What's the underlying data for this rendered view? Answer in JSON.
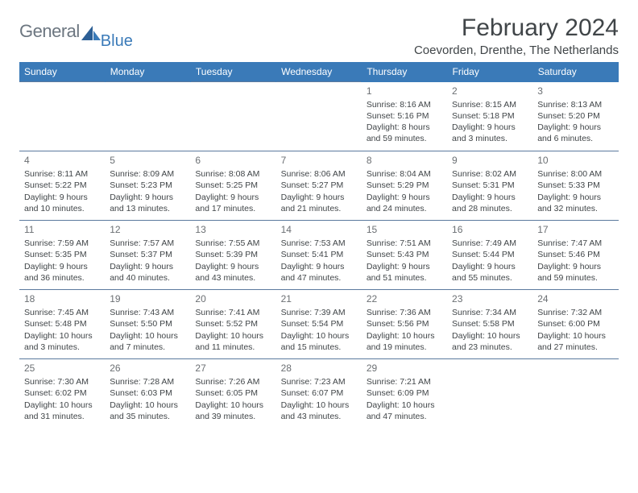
{
  "header": {
    "logo_general": "General",
    "logo_blue": "Blue",
    "logo_color_gray": "#6c7680",
    "logo_color_blue": "#3a7ab8",
    "month_title": "February 2024",
    "location": "Coevorden, Drenthe, The Netherlands"
  },
  "style": {
    "header_bg": "#3a7ab8",
    "header_fg": "#ffffff",
    "border_color": "#5b7a9e",
    "text_color": "#404548",
    "daynum_color": "#6b6f73",
    "background": "#ffffff",
    "body_fontsize": 10.5,
    "title_fontsize": 30,
    "location_fontsize": 15,
    "daynum_fontsize": 12,
    "header_fontsize": 12
  },
  "weekdays": [
    "Sunday",
    "Monday",
    "Tuesday",
    "Wednesday",
    "Thursday",
    "Friday",
    "Saturday"
  ],
  "grid": [
    [
      null,
      null,
      null,
      null,
      {
        "day": "1",
        "sunrise": "Sunrise: 8:16 AM",
        "sunset": "Sunset: 5:16 PM",
        "dl1": "Daylight: 8 hours",
        "dl2": "and 59 minutes."
      },
      {
        "day": "2",
        "sunrise": "Sunrise: 8:15 AM",
        "sunset": "Sunset: 5:18 PM",
        "dl1": "Daylight: 9 hours",
        "dl2": "and 3 minutes."
      },
      {
        "day": "3",
        "sunrise": "Sunrise: 8:13 AM",
        "sunset": "Sunset: 5:20 PM",
        "dl1": "Daylight: 9 hours",
        "dl2": "and 6 minutes."
      }
    ],
    [
      {
        "day": "4",
        "sunrise": "Sunrise: 8:11 AM",
        "sunset": "Sunset: 5:22 PM",
        "dl1": "Daylight: 9 hours",
        "dl2": "and 10 minutes."
      },
      {
        "day": "5",
        "sunrise": "Sunrise: 8:09 AM",
        "sunset": "Sunset: 5:23 PM",
        "dl1": "Daylight: 9 hours",
        "dl2": "and 13 minutes."
      },
      {
        "day": "6",
        "sunrise": "Sunrise: 8:08 AM",
        "sunset": "Sunset: 5:25 PM",
        "dl1": "Daylight: 9 hours",
        "dl2": "and 17 minutes."
      },
      {
        "day": "7",
        "sunrise": "Sunrise: 8:06 AM",
        "sunset": "Sunset: 5:27 PM",
        "dl1": "Daylight: 9 hours",
        "dl2": "and 21 minutes."
      },
      {
        "day": "8",
        "sunrise": "Sunrise: 8:04 AM",
        "sunset": "Sunset: 5:29 PM",
        "dl1": "Daylight: 9 hours",
        "dl2": "and 24 minutes."
      },
      {
        "day": "9",
        "sunrise": "Sunrise: 8:02 AM",
        "sunset": "Sunset: 5:31 PM",
        "dl1": "Daylight: 9 hours",
        "dl2": "and 28 minutes."
      },
      {
        "day": "10",
        "sunrise": "Sunrise: 8:00 AM",
        "sunset": "Sunset: 5:33 PM",
        "dl1": "Daylight: 9 hours",
        "dl2": "and 32 minutes."
      }
    ],
    [
      {
        "day": "11",
        "sunrise": "Sunrise: 7:59 AM",
        "sunset": "Sunset: 5:35 PM",
        "dl1": "Daylight: 9 hours",
        "dl2": "and 36 minutes."
      },
      {
        "day": "12",
        "sunrise": "Sunrise: 7:57 AM",
        "sunset": "Sunset: 5:37 PM",
        "dl1": "Daylight: 9 hours",
        "dl2": "and 40 minutes."
      },
      {
        "day": "13",
        "sunrise": "Sunrise: 7:55 AM",
        "sunset": "Sunset: 5:39 PM",
        "dl1": "Daylight: 9 hours",
        "dl2": "and 43 minutes."
      },
      {
        "day": "14",
        "sunrise": "Sunrise: 7:53 AM",
        "sunset": "Sunset: 5:41 PM",
        "dl1": "Daylight: 9 hours",
        "dl2": "and 47 minutes."
      },
      {
        "day": "15",
        "sunrise": "Sunrise: 7:51 AM",
        "sunset": "Sunset: 5:43 PM",
        "dl1": "Daylight: 9 hours",
        "dl2": "and 51 minutes."
      },
      {
        "day": "16",
        "sunrise": "Sunrise: 7:49 AM",
        "sunset": "Sunset: 5:44 PM",
        "dl1": "Daylight: 9 hours",
        "dl2": "and 55 minutes."
      },
      {
        "day": "17",
        "sunrise": "Sunrise: 7:47 AM",
        "sunset": "Sunset: 5:46 PM",
        "dl1": "Daylight: 9 hours",
        "dl2": "and 59 minutes."
      }
    ],
    [
      {
        "day": "18",
        "sunrise": "Sunrise: 7:45 AM",
        "sunset": "Sunset: 5:48 PM",
        "dl1": "Daylight: 10 hours",
        "dl2": "and 3 minutes."
      },
      {
        "day": "19",
        "sunrise": "Sunrise: 7:43 AM",
        "sunset": "Sunset: 5:50 PM",
        "dl1": "Daylight: 10 hours",
        "dl2": "and 7 minutes."
      },
      {
        "day": "20",
        "sunrise": "Sunrise: 7:41 AM",
        "sunset": "Sunset: 5:52 PM",
        "dl1": "Daylight: 10 hours",
        "dl2": "and 11 minutes."
      },
      {
        "day": "21",
        "sunrise": "Sunrise: 7:39 AM",
        "sunset": "Sunset: 5:54 PM",
        "dl1": "Daylight: 10 hours",
        "dl2": "and 15 minutes."
      },
      {
        "day": "22",
        "sunrise": "Sunrise: 7:36 AM",
        "sunset": "Sunset: 5:56 PM",
        "dl1": "Daylight: 10 hours",
        "dl2": "and 19 minutes."
      },
      {
        "day": "23",
        "sunrise": "Sunrise: 7:34 AM",
        "sunset": "Sunset: 5:58 PM",
        "dl1": "Daylight: 10 hours",
        "dl2": "and 23 minutes."
      },
      {
        "day": "24",
        "sunrise": "Sunrise: 7:32 AM",
        "sunset": "Sunset: 6:00 PM",
        "dl1": "Daylight: 10 hours",
        "dl2": "and 27 minutes."
      }
    ],
    [
      {
        "day": "25",
        "sunrise": "Sunrise: 7:30 AM",
        "sunset": "Sunset: 6:02 PM",
        "dl1": "Daylight: 10 hours",
        "dl2": "and 31 minutes."
      },
      {
        "day": "26",
        "sunrise": "Sunrise: 7:28 AM",
        "sunset": "Sunset: 6:03 PM",
        "dl1": "Daylight: 10 hours",
        "dl2": "and 35 minutes."
      },
      {
        "day": "27",
        "sunrise": "Sunrise: 7:26 AM",
        "sunset": "Sunset: 6:05 PM",
        "dl1": "Daylight: 10 hours",
        "dl2": "and 39 minutes."
      },
      {
        "day": "28",
        "sunrise": "Sunrise: 7:23 AM",
        "sunset": "Sunset: 6:07 PM",
        "dl1": "Daylight: 10 hours",
        "dl2": "and 43 minutes."
      },
      {
        "day": "29",
        "sunrise": "Sunrise: 7:21 AM",
        "sunset": "Sunset: 6:09 PM",
        "dl1": "Daylight: 10 hours",
        "dl2": "and 47 minutes."
      },
      null,
      null
    ]
  ]
}
